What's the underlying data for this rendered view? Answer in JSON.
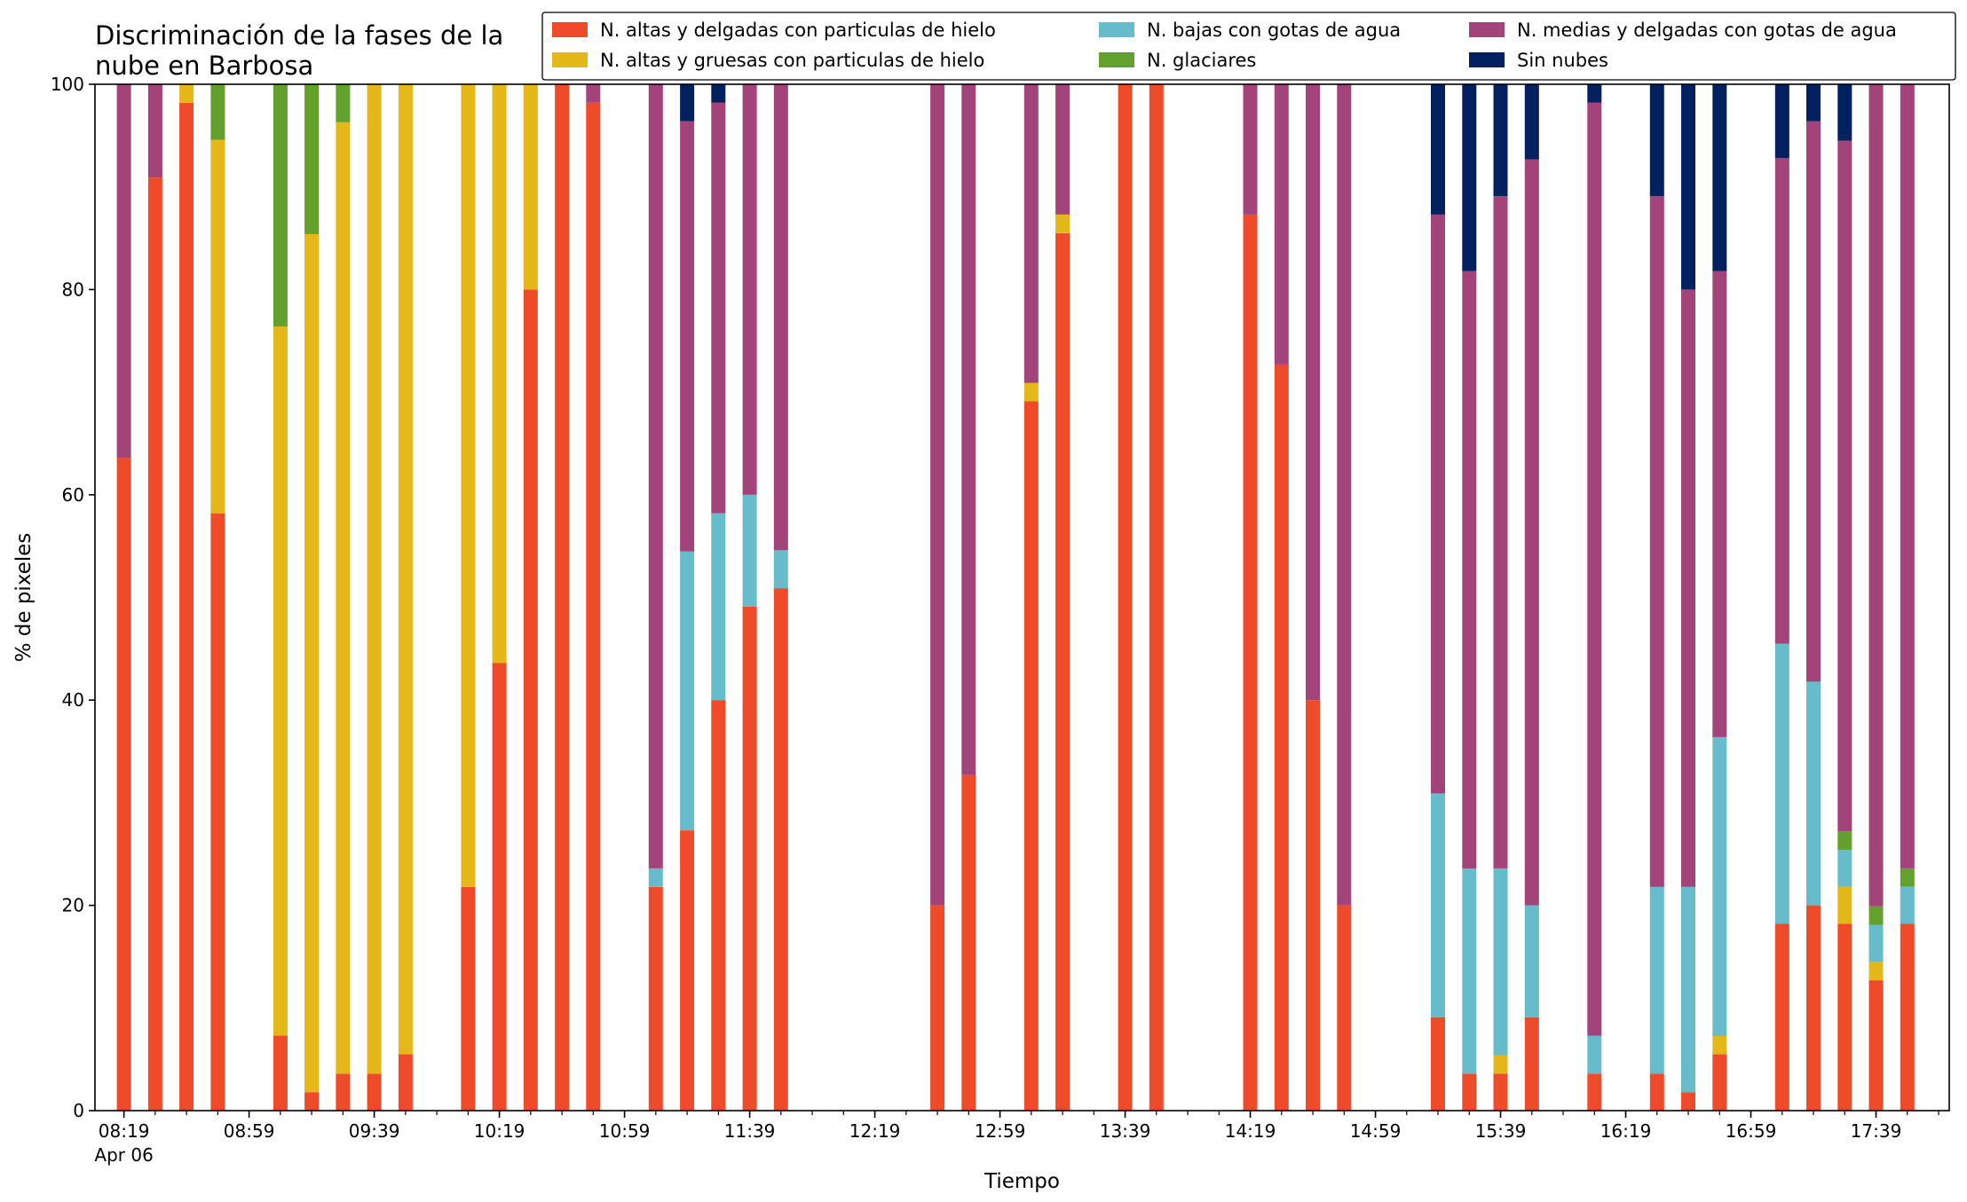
{
  "chart_data": {
    "type": "bar",
    "stacked": true,
    "title": "Discriminación de la fases de la\nnube en Barbosa",
    "xlabel": "Tiempo",
    "ylabel": "% de pixeles",
    "ylim": [
      0,
      100
    ],
    "yticks": [
      0,
      20,
      40,
      60,
      80,
      100
    ],
    "grid": false,
    "legend_position": "top-right",
    "x_time_range": [
      "08:19",
      "17:59"
    ],
    "bar_interval_minutes": 10,
    "xtick_labels": [
      {
        "time": "08:19",
        "label": "08:19",
        "sublabel": "Apr 06"
      },
      {
        "time": "08:59",
        "label": "08:59"
      },
      {
        "time": "09:39",
        "label": "09:39"
      },
      {
        "time": "10:19",
        "label": "10:19"
      },
      {
        "time": "10:59",
        "label": "10:59"
      },
      {
        "time": "11:39",
        "label": "11:39"
      },
      {
        "time": "12:19",
        "label": "12:19"
      },
      {
        "time": "12:59",
        "label": "12:59"
      },
      {
        "time": "13:39",
        "label": "13:39"
      },
      {
        "time": "14:19",
        "label": "14:19"
      },
      {
        "time": "14:59",
        "label": "14:59"
      },
      {
        "time": "15:39",
        "label": "15:39"
      },
      {
        "time": "16:19",
        "label": "16:19"
      },
      {
        "time": "16:59",
        "label": "16:59"
      },
      {
        "time": "17:39",
        "label": "17:39"
      }
    ],
    "series": [
      {
        "name": "N. altas y delgadas con particulas de hielo",
        "color": "#ee4b2b"
      },
      {
        "name": "N. altas y gruesas con particulas de hielo",
        "color": "#e5b81a"
      },
      {
        "name": "N. bajas con gotas de agua",
        "color": "#66bccb"
      },
      {
        "name": "N. glaciares",
        "color": "#62a12e"
      },
      {
        "name": "N. medias y delgadas con gotas de agua",
        "color": "#a2447a"
      },
      {
        "name": "Sin nubes",
        "color": "#03205f"
      }
    ],
    "series_order_bottom_to_top": [
      "N. altas y delgadas con particulas de hielo",
      "N. altas y gruesas con particulas de hielo",
      "N. bajas con gotas de agua",
      "N. glaciares",
      "N. medias y delgadas con gotas de agua",
      "Sin nubes"
    ],
    "bars": [
      {
        "time": "08:19",
        "values": [
          63.6,
          0,
          0,
          0,
          36.4,
          0
        ]
      },
      {
        "time": "08:29",
        "values": [
          90.9,
          0,
          0,
          0,
          9.1,
          0
        ]
      },
      {
        "time": "08:39",
        "values": [
          98.2,
          1.8,
          0,
          0,
          0,
          0
        ]
      },
      {
        "time": "08:49",
        "values": [
          58.2,
          36.4,
          0,
          5.4,
          0,
          0
        ]
      },
      {
        "time": "09:09",
        "values": [
          7.3,
          69.1,
          0,
          23.6,
          0,
          0
        ]
      },
      {
        "time": "09:19",
        "values": [
          1.8,
          83.6,
          0,
          14.6,
          0,
          0
        ]
      },
      {
        "time": "09:29",
        "values": [
          3.6,
          92.7,
          0,
          3.7,
          0,
          0
        ]
      },
      {
        "time": "09:39",
        "values": [
          3.6,
          96.4,
          0,
          0,
          0,
          0
        ]
      },
      {
        "time": "09:49",
        "values": [
          5.5,
          94.5,
          0,
          0,
          0,
          0
        ]
      },
      {
        "time": "10:09",
        "values": [
          21.8,
          78.2,
          0,
          0,
          0,
          0
        ]
      },
      {
        "time": "10:19",
        "values": [
          43.6,
          56.4,
          0,
          0,
          0,
          0
        ]
      },
      {
        "time": "10:29",
        "values": [
          80.0,
          20.0,
          0,
          0,
          0,
          0
        ]
      },
      {
        "time": "10:39",
        "values": [
          100,
          0,
          0,
          0,
          0,
          0
        ]
      },
      {
        "time": "10:49",
        "values": [
          98.2,
          0,
          0,
          0,
          1.8,
          0
        ]
      },
      {
        "time": "11:09",
        "values": [
          21.8,
          0,
          1.8,
          0,
          76.4,
          0
        ]
      },
      {
        "time": "11:19",
        "values": [
          27.3,
          0,
          27.2,
          0,
          41.9,
          3.6
        ]
      },
      {
        "time": "11:29",
        "values": [
          40.0,
          0,
          18.2,
          0,
          40.0,
          1.8
        ]
      },
      {
        "time": "11:39",
        "values": [
          49.1,
          0,
          10.9,
          0,
          40.0,
          0
        ]
      },
      {
        "time": "11:49",
        "values": [
          50.9,
          0,
          3.7,
          0,
          45.4,
          0
        ]
      },
      {
        "time": "12:39",
        "values": [
          20.0,
          0,
          0,
          0,
          80.0,
          0
        ]
      },
      {
        "time": "12:49",
        "values": [
          32.7,
          0,
          0,
          0,
          67.3,
          0
        ]
      },
      {
        "time": "13:09",
        "values": [
          69.1,
          1.8,
          0,
          0,
          29.1,
          0
        ]
      },
      {
        "time": "13:19",
        "values": [
          85.5,
          1.8,
          0,
          0,
          12.7,
          0
        ]
      },
      {
        "time": "13:39",
        "values": [
          100,
          0,
          0,
          0,
          0,
          0
        ]
      },
      {
        "time": "13:49",
        "values": [
          100,
          0,
          0,
          0,
          0,
          0
        ]
      },
      {
        "time": "14:19",
        "values": [
          87.3,
          0,
          0,
          0,
          12.7,
          0
        ]
      },
      {
        "time": "14:29",
        "values": [
          72.7,
          0,
          0,
          0,
          27.3,
          0
        ]
      },
      {
        "time": "14:39",
        "values": [
          40.0,
          0,
          0,
          0,
          60.0,
          0
        ]
      },
      {
        "time": "14:49",
        "values": [
          20.0,
          0,
          0,
          0,
          80.0,
          0
        ]
      },
      {
        "time": "15:19",
        "values": [
          9.1,
          0,
          21.8,
          0,
          56.4,
          12.7
        ]
      },
      {
        "time": "15:29",
        "values": [
          3.6,
          0,
          20.0,
          0,
          58.2,
          18.2
        ]
      },
      {
        "time": "15:39",
        "values": [
          3.6,
          1.8,
          18.2,
          0,
          65.5,
          10.9
        ]
      },
      {
        "time": "15:49",
        "values": [
          9.1,
          0,
          10.9,
          0,
          72.7,
          7.3
        ]
      },
      {
        "time": "16:09",
        "values": [
          3.6,
          0,
          3.7,
          0,
          90.9,
          1.8
        ]
      },
      {
        "time": "16:29",
        "values": [
          3.6,
          0,
          18.2,
          0,
          67.3,
          10.9
        ]
      },
      {
        "time": "16:39",
        "values": [
          1.8,
          0,
          20.0,
          0,
          58.2,
          20.0
        ]
      },
      {
        "time": "16:49",
        "values": [
          5.5,
          1.8,
          29.1,
          0,
          45.4,
          18.2
        ]
      },
      {
        "time": "17:09",
        "values": [
          18.2,
          0,
          27.3,
          0,
          47.3,
          7.2
        ]
      },
      {
        "time": "17:19",
        "values": [
          20.0,
          0,
          21.8,
          0,
          54.6,
          3.6
        ]
      },
      {
        "time": "17:29",
        "values": [
          18.2,
          3.6,
          3.6,
          1.8,
          67.3,
          5.5
        ]
      },
      {
        "time": "17:39",
        "values": [
          12.7,
          1.8,
          3.6,
          1.8,
          80.1,
          0
        ]
      },
      {
        "time": "17:49",
        "values": [
          18.2,
          0,
          3.6,
          1.8,
          76.4,
          0
        ]
      }
    ]
  }
}
